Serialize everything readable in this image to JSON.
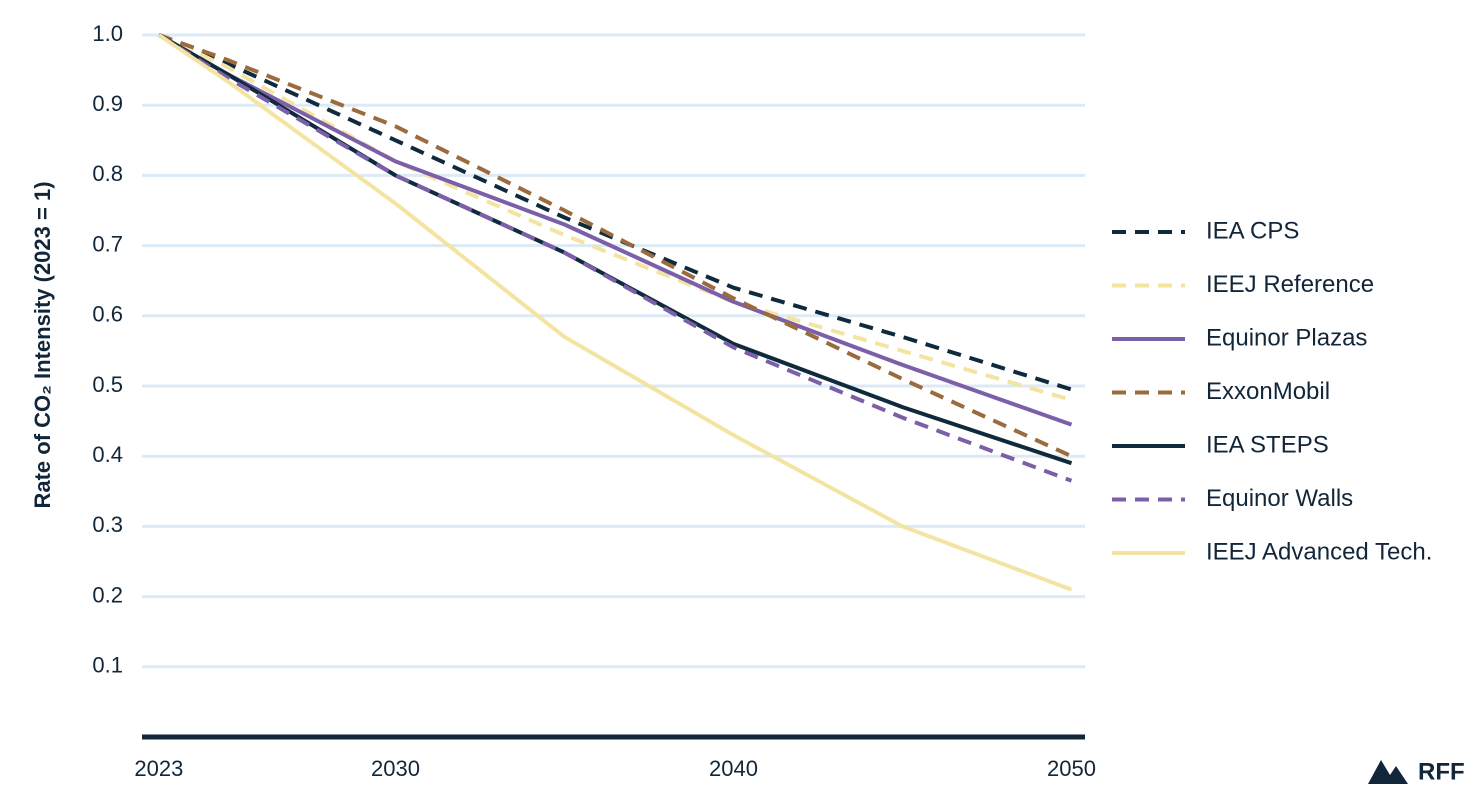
{
  "chart_data": {
    "type": "line",
    "y_label": "Rate of CO₂ Intensity (2023 = 1)",
    "x": [
      2023,
      2025,
      2030,
      2035,
      2040,
      2045,
      2050
    ],
    "xlim": [
      2022.5,
      2050.4
    ],
    "xticks": [
      2023,
      2030,
      2040,
      2050
    ],
    "ylim": [
      0,
      1
    ],
    "yticks": [
      0.1,
      0.2,
      0.3,
      0.4,
      0.5,
      0.6,
      0.7,
      0.8,
      0.9,
      {
        "value": 1,
        "label": "1.0"
      }
    ],
    "grid": true,
    "legend": "right",
    "series": [
      {
        "name": "IEA CPS",
        "color": "#0f2a3c",
        "style": "dashed",
        "values": [
          1.0,
          0.96,
          0.85,
          0.74,
          0.64,
          0.57,
          0.495
        ]
      },
      {
        "name": "IEEJ Reference",
        "color": "#f3e4a2",
        "style": "dashed",
        "values": [
          1.0,
          0.955,
          0.82,
          0.715,
          0.62,
          0.55,
          0.48
        ]
      },
      {
        "name": "Equinor Plazas",
        "color": "#7b60a9",
        "style": "solid",
        "values": [
          1.0,
          0.945,
          0.82,
          0.73,
          0.62,
          0.53,
          0.445
        ]
      },
      {
        "name": "ExxonMobil",
        "color": "#9b6a3d",
        "style": "dashed",
        "values": [
          1.0,
          0.965,
          0.87,
          0.75,
          0.625,
          0.51,
          0.4
        ]
      },
      {
        "name": "IEA STEPS",
        "color": "#0f2a3c",
        "style": "solid",
        "values": [
          1.0,
          0.945,
          0.8,
          0.69,
          0.56,
          0.47,
          0.39
        ]
      },
      {
        "name": "Equinor Walls",
        "color": "#7b60a9",
        "style": "dashed",
        "values": [
          1.0,
          0.94,
          0.8,
          0.69,
          0.555,
          0.455,
          0.365
        ]
      },
      {
        "name": "IEEJ Advanced Tech.",
        "color": "#f3e4a2",
        "style": "solid",
        "values": [
          1.0,
          0.935,
          0.76,
          0.57,
          0.43,
          0.3,
          0.21
        ]
      }
    ]
  },
  "logo_text": "RFF"
}
